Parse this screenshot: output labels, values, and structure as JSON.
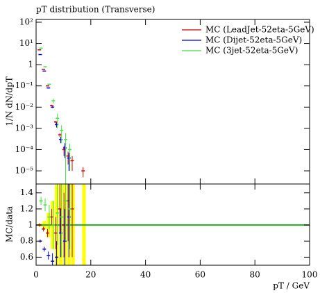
{
  "chart_data": [
    {
      "type": "scatter",
      "title": "pT distribution (Transverse)",
      "ylabel": "1/N dN/dpT",
      "log_y": true,
      "legend": "top-right",
      "xtick_labels": false,
      "xlim": [
        0,
        100
      ],
      "xticks": [
        0,
        20,
        40,
        60,
        80,
        100
      ],
      "ylim": [
        2.4e-06,
        135
      ],
      "yticks": [
        {
          "value": 100,
          "label": "10²"
        },
        {
          "value": 10,
          "label": "10¹"
        },
        1,
        {
          "value": 0.1,
          "label": "10⁻¹"
        },
        {
          "value": 0.01,
          "label": "10⁻²"
        },
        {
          "value": 0.001,
          "label": "10⁻³"
        },
        {
          "value": 0.0001,
          "label": "10⁻⁴"
        },
        {
          "value": 1e-05,
          "label": "10⁻⁵"
        }
      ],
      "x": [
        1.5,
        3,
        4.5,
        6,
        7.5,
        9,
        10.5,
        12,
        13.5,
        17.5
      ],
      "series": [
        {
          "name": "MC (LeadJet-52eta-5GeV)",
          "color": "#cc0000",
          "values": [
            5,
            0.6,
            0.1,
            0.012,
            0.002,
            0.0005,
            0.0001,
            5e-05,
            3e-05,
            1e-05
          ],
          "errors": [
            0.1,
            0.02,
            0.005,
            0.001,
            0.0003,
            0.0001,
            5e-05,
            3e-05,
            2e-05,
            5e-06
          ]
        },
        {
          "name": "MC (Dijet-52eta-5GeV)",
          "color": "#0000dd",
          "values": [
            3,
            0.5,
            0.08,
            0.01,
            0.0015,
            0.0003,
            0.00012,
            4e-05,
            null,
            null
          ],
          "errors": [
            0.1,
            0.02,
            0.004,
            0.001,
            0.0004,
            0.0001,
            8e-05,
            3e-05,
            null,
            null
          ]
        },
        {
          "name": "MC (3jet-52eta-5GeV)",
          "color": "#44dd44",
          "values": [
            6,
            0.8,
            0.12,
            0.02,
            0.003,
            0.0008,
            0.0003,
            0.0001,
            null,
            null
          ],
          "errors": [
            0.2,
            0.03,
            0.006,
            0.005,
            0.002,
            0.0006,
            0.0003,
            9e-05,
            null,
            null
          ]
        }
      ]
    },
    {
      "type": "scatter",
      "ylabel": "MC/data",
      "xlabel": "pT / GeV",
      "xlim": [
        0,
        100
      ],
      "xticks": [
        0,
        20,
        40,
        60,
        80,
        100
      ],
      "ylim": [
        0.5,
        1.51
      ],
      "yticks": [
        0.6,
        0.8,
        1,
        1.2,
        1.4
      ],
      "reference": {
        "value": 1,
        "color": "#22aa22"
      },
      "band": {
        "color": "#ffff00",
        "x": [
          1.5,
          3,
          4.5,
          6,
          7.5,
          9,
          10.5,
          12,
          13.5,
          17.5
        ],
        "lower": [
          0.98,
          0.95,
          0.85,
          0.7,
          0.5,
          0.5,
          0.5,
          0.5,
          0.5,
          0.5
        ],
        "upper": [
          1.02,
          1.05,
          1.15,
          1.3,
          1.5,
          1.51,
          1.51,
          1.51,
          1.51,
          1.51
        ]
      },
      "x": [
        1.5,
        3,
        4.5,
        6,
        7.5,
        9,
        10.5,
        12,
        13.5,
        17.5
      ],
      "series": [
        {
          "color": "#cc0000",
          "values": [
            1,
            0.95,
            0.9,
            1.1,
            0.9,
            1.2,
            1.0,
            1.3,
            1.2,
            null
          ],
          "errors": [
            0.02,
            0.03,
            0.05,
            0.1,
            0.2,
            0.3,
            0.4,
            0.5,
            0.6,
            null
          ]
        },
        {
          "color": "#0000dd",
          "values": [
            0.8,
            0.7,
            0.62,
            0.55,
            0.6,
            0.9,
            0.8,
            1.1,
            null,
            null
          ],
          "errors": [
            0.02,
            0.03,
            0.05,
            0.1,
            0.2,
            0.3,
            0.4,
            0.5,
            null,
            null
          ]
        },
        {
          "color": "#44dd44",
          "values": [
            1.3,
            1.25,
            1.1,
            1.0,
            1.15,
            1.1,
            1.3,
            1.2,
            null,
            null
          ],
          "errors": [
            0.05,
            0.08,
            0.15,
            0.3,
            0.4,
            0.5,
            0.5,
            0.5,
            null,
            null
          ]
        }
      ]
    }
  ]
}
